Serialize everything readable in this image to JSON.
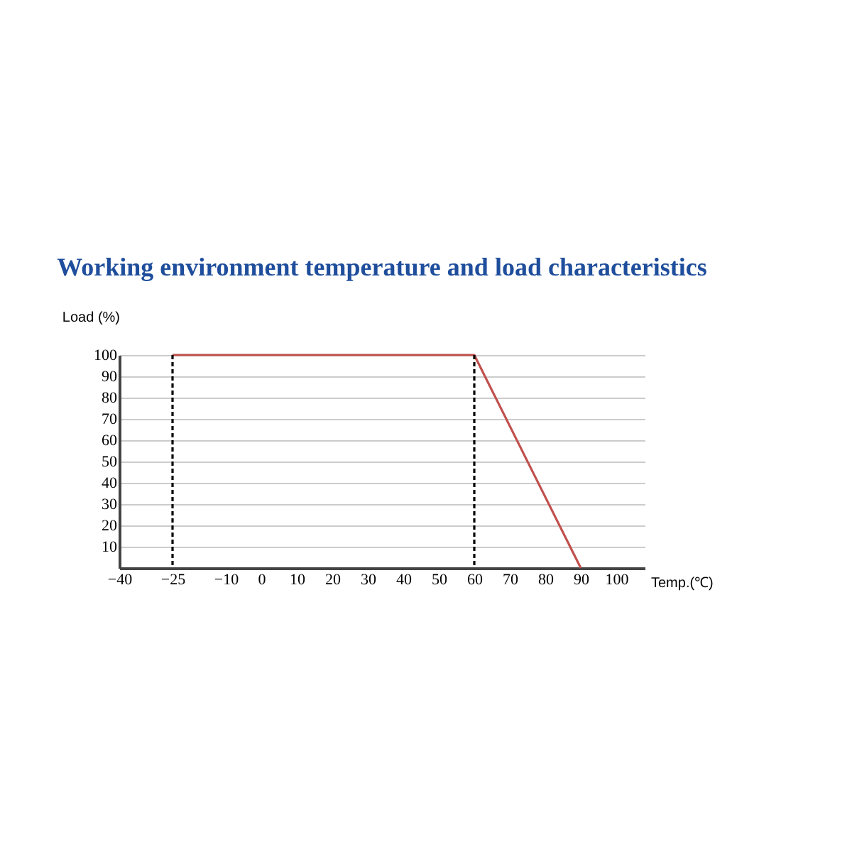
{
  "chart_data": {
    "type": "line",
    "title": "Working environment temperature and load characteristics",
    "xlabel": "Temp.(℃)",
    "ylabel": "Load (%)",
    "series": [
      {
        "color": "#c0504d",
        "x": [
          -25,
          60,
          90
        ],
        "values": [
          100,
          100,
          0
        ],
        "line_style": "solid"
      }
    ],
    "ref_lines": [
      {
        "axis": "x",
        "value": -25,
        "color": "#000000",
        "line_style": "dotted"
      },
      {
        "axis": "x",
        "value": 60,
        "color": "#000000",
        "line_style": "dotted"
      }
    ],
    "xlim": [
      -40,
      108
    ],
    "xticks": [
      -40,
      -25,
      -10,
      0,
      10,
      20,
      30,
      40,
      50,
      60,
      70,
      80,
      90,
      100
    ],
    "ylim": [
      0,
      100
    ],
    "yticks": [
      10,
      20,
      30,
      40,
      50,
      60,
      70,
      80,
      90,
      100
    ],
    "grid": "y",
    "legend": false,
    "marker": "none"
  }
}
